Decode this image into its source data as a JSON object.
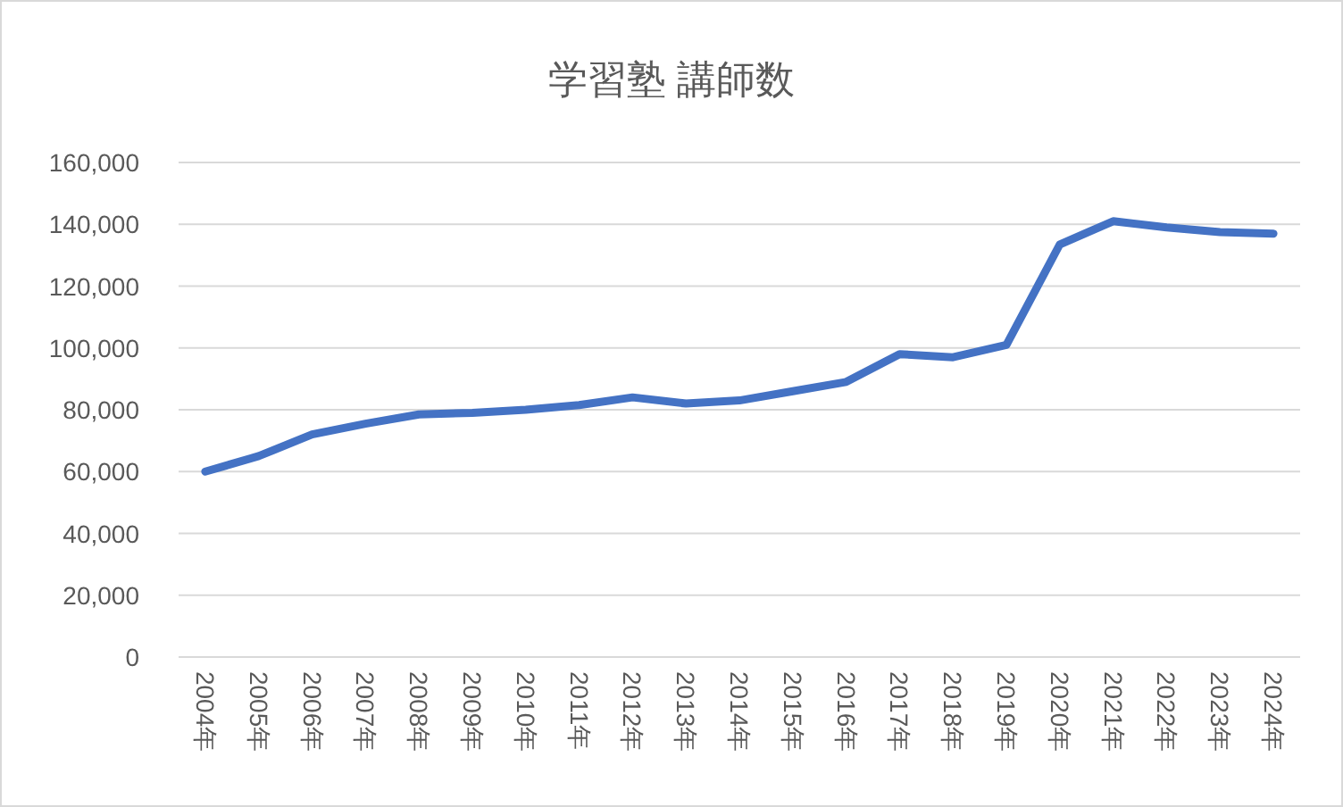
{
  "chart_data": {
    "type": "line",
    "title": "学習塾 講師数",
    "categories": [
      "2004年",
      "2005年",
      "2006年",
      "2007年",
      "2008年",
      "2009年",
      "2010年",
      "2011年",
      "2012年",
      "2013年",
      "2014年",
      "2015年",
      "2016年",
      "2017年",
      "2018年",
      "2019年",
      "2020年",
      "2021年",
      "2022年",
      "2023年",
      "2024年"
    ],
    "series": [
      {
        "color": "#4472c4",
        "values": [
          60000,
          65000,
          72000,
          75500,
          78500,
          79000,
          80000,
          81500,
          84000,
          82000,
          83000,
          86000,
          89000,
          98000,
          97000,
          101000,
          133500,
          141000,
          139000,
          137500,
          137000
        ]
      }
    ],
    "ylim": [
      0,
      160000
    ],
    "yticks": [
      {
        "value": 0,
        "label": "0"
      },
      {
        "value": 20000,
        "label": "20,000"
      },
      {
        "value": 40000,
        "label": "40,000"
      },
      {
        "value": 60000,
        "label": "60,000"
      },
      {
        "value": 80000,
        "label": "80,000"
      },
      {
        "value": 100000,
        "label": "100,000"
      },
      {
        "value": 120000,
        "label": "120,000"
      },
      {
        "value": 140000,
        "label": "140,000"
      },
      {
        "value": 160000,
        "label": "160,000"
      }
    ],
    "grid": "y",
    "marker": "none",
    "line_style": "solid"
  }
}
